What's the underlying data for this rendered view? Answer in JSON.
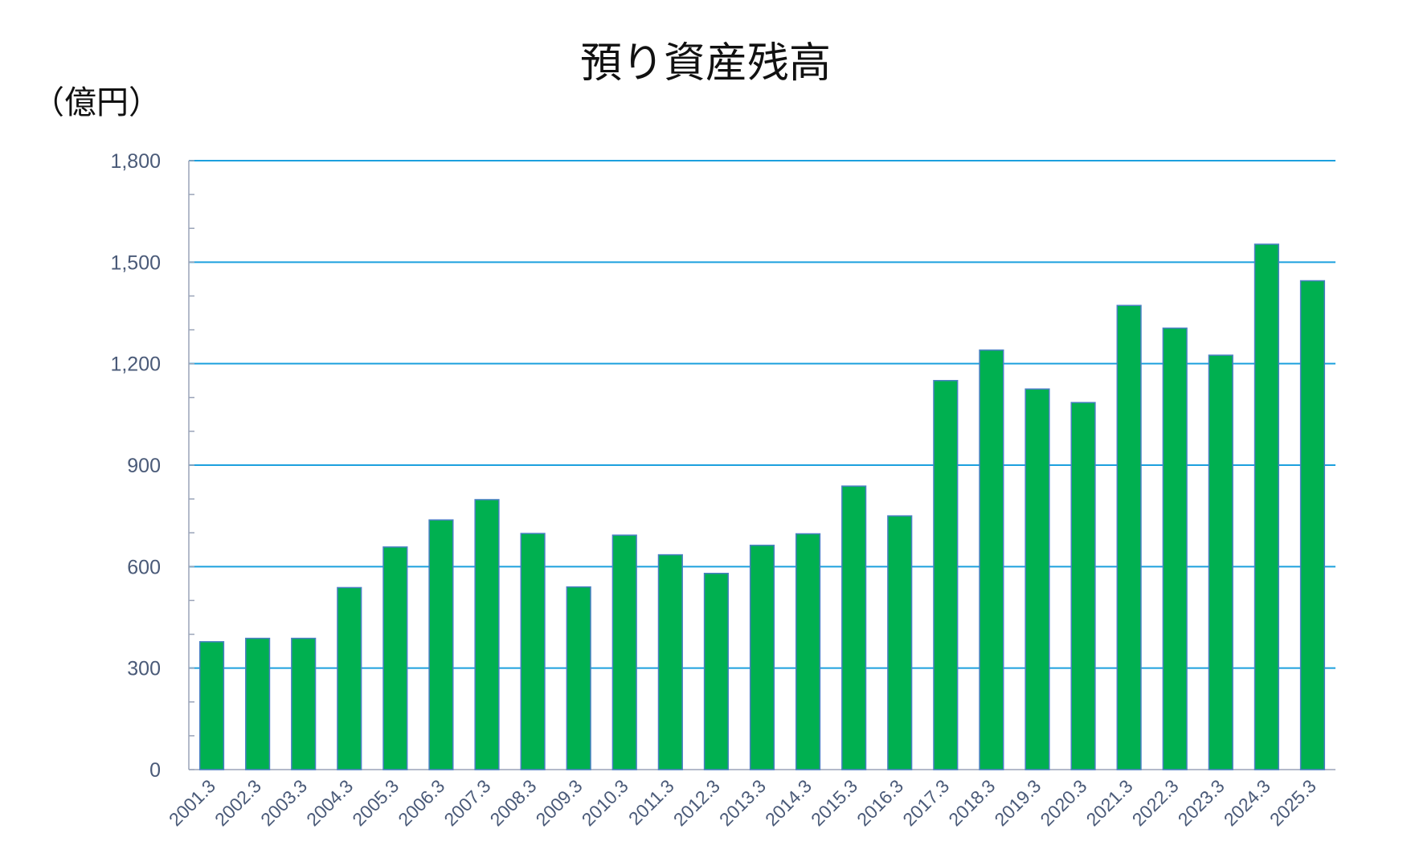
{
  "chart_data": {
    "type": "bar",
    "title": "預り資産残高",
    "ylabel": "（億円）",
    "xlabel": "",
    "ylim": [
      0,
      1800
    ],
    "yticks": [
      "0",
      "300",
      "600",
      "900",
      "1,200",
      "1,500",
      "1,800"
    ],
    "grid": true,
    "legend": "none",
    "categories": [
      "2001.3",
      "2002.3",
      "2003.3",
      "2004.3",
      "2005.3",
      "2006.3",
      "2007.3",
      "2008.3",
      "2009.3",
      "2010.3",
      "2011.3",
      "2012.3",
      "2013.3",
      "2014.3",
      "2015.3",
      "2016.3",
      "2017.3",
      "2018.3",
      "2019.3",
      "2020.3",
      "2021.3",
      "2022.3",
      "2023.3",
      "2024.3",
      "2025.3"
    ],
    "values": [
      378,
      388,
      388,
      538,
      658,
      738,
      798,
      698,
      540,
      693,
      635,
      580,
      663,
      697,
      838,
      750,
      1150,
      1240,
      1125,
      1085,
      1372,
      1305,
      1225,
      1553,
      1445
    ],
    "colors": {
      "bar": "#00b050",
      "bar_border": "#4a7fc4",
      "grid": "#1ca0de",
      "axis": "#9aa4b8",
      "tick_text": "#4a5a78"
    }
  }
}
